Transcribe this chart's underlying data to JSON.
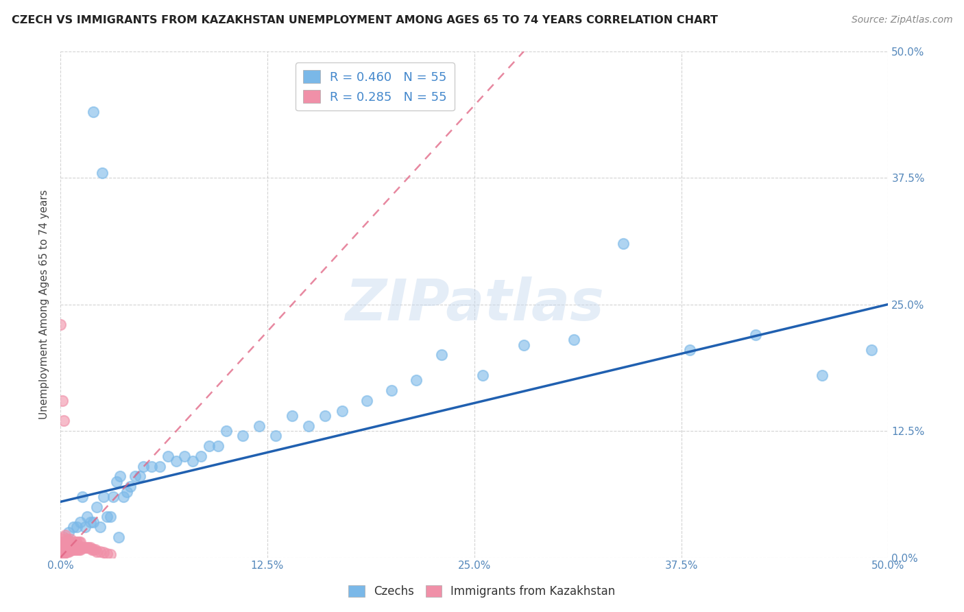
{
  "title": "CZECH VS IMMIGRANTS FROM KAZAKHSTAN UNEMPLOYMENT AMONG AGES 65 TO 74 YEARS CORRELATION CHART",
  "source": "Source: ZipAtlas.com",
  "ylabel": "Unemployment Among Ages 65 to 74 years",
  "xlim": [
    0.0,
    0.5
  ],
  "ylim": [
    0.0,
    0.5
  ],
  "czech_color": "#7ab8e8",
  "kazakh_color": "#f090a8",
  "trend_czech_color": "#2060b0",
  "trend_kazakh_color": "#e06080",
  "watermark_text": "ZIPatlas",
  "czech_R": 0.46,
  "kazakh_R": 0.285,
  "N": 55,
  "czech_trend_x0": 0.0,
  "czech_trend_y0": 0.055,
  "czech_trend_x1": 0.5,
  "czech_trend_y1": 0.25,
  "kazakh_trend_x0": 0.0,
  "kazakh_trend_y0": 0.0,
  "kazakh_trend_x1": 0.28,
  "kazakh_trend_y1": 0.5,
  "czech_x": [
    0.005,
    0.008,
    0.01,
    0.012,
    0.013,
    0.015,
    0.016,
    0.018,
    0.02,
    0.022,
    0.024,
    0.026,
    0.028,
    0.03,
    0.032,
    0.034,
    0.036,
    0.038,
    0.04,
    0.042,
    0.045,
    0.048,
    0.05,
    0.055,
    0.06,
    0.065,
    0.07,
    0.075,
    0.08,
    0.085,
    0.09,
    0.095,
    0.1,
    0.11,
    0.12,
    0.13,
    0.14,
    0.15,
    0.16,
    0.17,
    0.185,
    0.2,
    0.215,
    0.23,
    0.255,
    0.28,
    0.31,
    0.34,
    0.38,
    0.42,
    0.46,
    0.49,
    0.02,
    0.025,
    0.035
  ],
  "czech_y": [
    0.025,
    0.03,
    0.03,
    0.035,
    0.06,
    0.03,
    0.04,
    0.035,
    0.035,
    0.05,
    0.03,
    0.06,
    0.04,
    0.04,
    0.06,
    0.075,
    0.08,
    0.06,
    0.065,
    0.07,
    0.08,
    0.08,
    0.09,
    0.09,
    0.09,
    0.1,
    0.095,
    0.1,
    0.095,
    0.1,
    0.11,
    0.11,
    0.125,
    0.12,
    0.13,
    0.12,
    0.14,
    0.13,
    0.14,
    0.145,
    0.155,
    0.165,
    0.175,
    0.2,
    0.18,
    0.21,
    0.215,
    0.31,
    0.205,
    0.22,
    0.18,
    0.205,
    0.44,
    0.38,
    0.02
  ],
  "kazakh_x": [
    0.0,
    0.0,
    0.0,
    0.0,
    0.0,
    0.001,
    0.001,
    0.001,
    0.001,
    0.002,
    0.002,
    0.002,
    0.002,
    0.003,
    0.003,
    0.003,
    0.003,
    0.004,
    0.004,
    0.004,
    0.005,
    0.005,
    0.005,
    0.006,
    0.006,
    0.006,
    0.007,
    0.007,
    0.008,
    0.008,
    0.009,
    0.009,
    0.01,
    0.01,
    0.011,
    0.011,
    0.012,
    0.012,
    0.013,
    0.014,
    0.015,
    0.016,
    0.017,
    0.018,
    0.019,
    0.02,
    0.021,
    0.022,
    0.024,
    0.026,
    0.028,
    0.03,
    0.0,
    0.001,
    0.002
  ],
  "kazakh_y": [
    0.002,
    0.005,
    0.007,
    0.01,
    0.015,
    0.003,
    0.006,
    0.01,
    0.018,
    0.004,
    0.008,
    0.012,
    0.02,
    0.005,
    0.009,
    0.015,
    0.022,
    0.006,
    0.012,
    0.018,
    0.006,
    0.01,
    0.016,
    0.007,
    0.012,
    0.018,
    0.008,
    0.015,
    0.008,
    0.014,
    0.008,
    0.015,
    0.008,
    0.015,
    0.008,
    0.015,
    0.008,
    0.015,
    0.01,
    0.01,
    0.01,
    0.01,
    0.01,
    0.01,
    0.008,
    0.008,
    0.008,
    0.006,
    0.006,
    0.005,
    0.004,
    0.003,
    0.23,
    0.155,
    0.135
  ]
}
